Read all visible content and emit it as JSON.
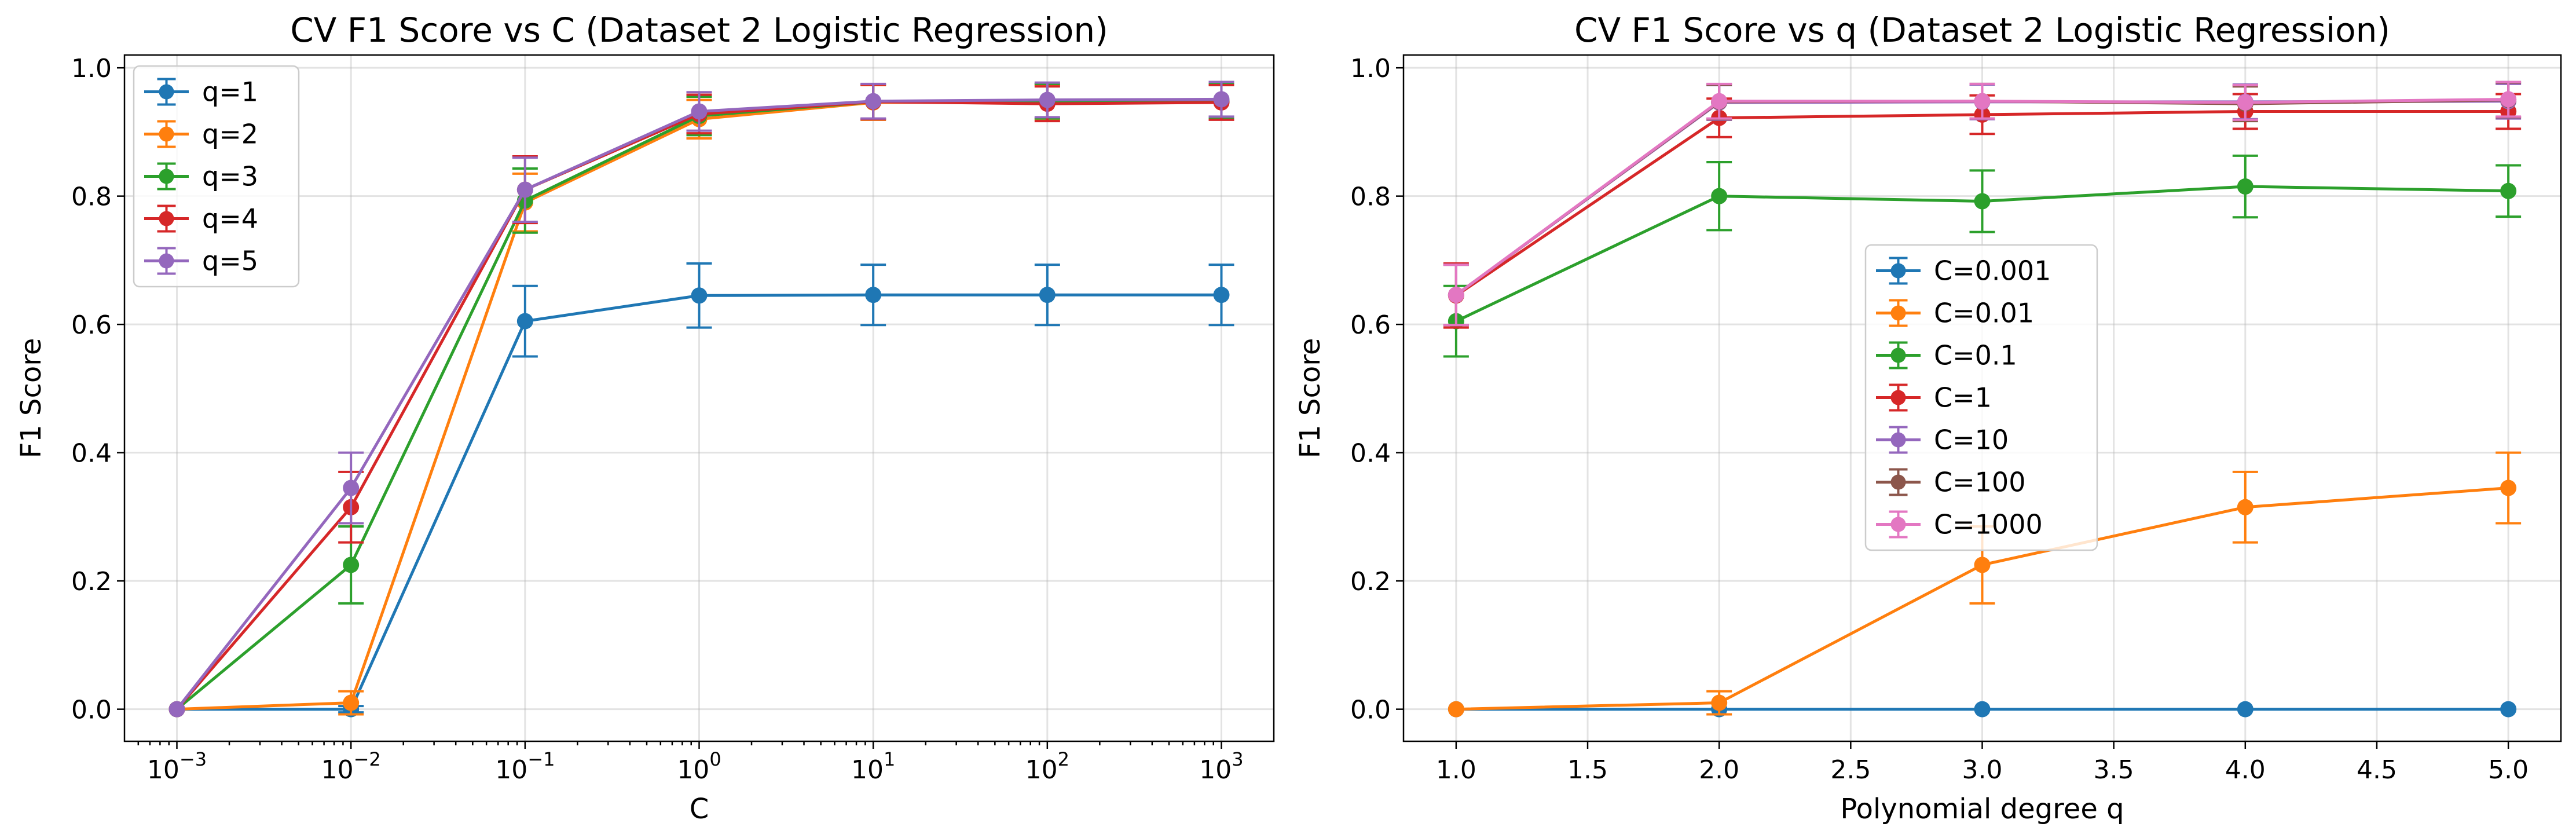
{
  "chart_data": [
    {
      "type": "line",
      "title": "CV F1 Score vs C (Dataset 2 Logistic Regression)",
      "xlabel": "C",
      "ylabel": "F1 Score",
      "xscale": "log",
      "x": [
        0.001,
        0.01,
        0.1,
        1,
        10,
        100,
        1000
      ],
      "xticks": [
        0.001,
        0.01,
        0.1,
        1,
        10,
        100,
        1000
      ],
      "xtick_labels": [
        {
          "base": "10",
          "exp": "−3"
        },
        {
          "base": "10",
          "exp": "−2"
        },
        {
          "base": "10",
          "exp": "−1"
        },
        {
          "base": "10",
          "exp": "0"
        },
        {
          "base": "10",
          "exp": "1"
        },
        {
          "base": "10",
          "exp": "2"
        },
        {
          "base": "10",
          "exp": "3"
        }
      ],
      "xlim": [
        0.0005,
        2000
      ],
      "ylim": [
        -0.05,
        1.02
      ],
      "yticks": [
        0.0,
        0.2,
        0.4,
        0.6,
        0.8,
        1.0
      ],
      "ytick_labels": [
        "0.0",
        "0.2",
        "0.4",
        "0.6",
        "0.8",
        "1.0"
      ],
      "grid": true,
      "legend_position": "upper-left",
      "series": [
        {
          "name": "q=1",
          "color": "#1f77b4",
          "values": [
            0.0,
            0.0,
            0.605,
            0.645,
            0.646,
            0.646,
            0.646
          ],
          "errors": [
            0.0,
            0.005,
            0.055,
            0.05,
            0.047,
            0.047,
            0.047
          ]
        },
        {
          "name": "q=2",
          "color": "#ff7f0e",
          "values": [
            0.0,
            0.01,
            0.79,
            0.92,
            0.946,
            0.947,
            0.948
          ],
          "errors": [
            0.0,
            0.018,
            0.045,
            0.03,
            0.027,
            0.027,
            0.027
          ]
        },
        {
          "name": "q=3",
          "color": "#2ca02c",
          "values": [
            0.0,
            0.225,
            0.793,
            0.925,
            0.947,
            0.948,
            0.948
          ],
          "errors": [
            0.0,
            0.06,
            0.05,
            0.03,
            0.027,
            0.027,
            0.027
          ]
        },
        {
          "name": "q=4",
          "color": "#d62728",
          "values": [
            0.0,
            0.315,
            0.81,
            0.928,
            0.947,
            0.944,
            0.946
          ],
          "errors": [
            0.0,
            0.055,
            0.052,
            0.03,
            0.027,
            0.027,
            0.027
          ]
        },
        {
          "name": "q=5",
          "color": "#9467bd",
          "values": [
            0.0,
            0.345,
            0.81,
            0.932,
            0.948,
            0.95,
            0.951
          ],
          "errors": [
            0.0,
            0.055,
            0.05,
            0.03,
            0.027,
            0.027,
            0.027
          ]
        }
      ]
    },
    {
      "type": "line",
      "title": "CV F1 Score vs q (Dataset 2 Logistic Regression)",
      "xlabel": "Polynomial degree q",
      "ylabel": "F1 Score",
      "xscale": "linear",
      "x": [
        1,
        2,
        3,
        4,
        5
      ],
      "xticks": [
        1.0,
        1.5,
        2.0,
        2.5,
        3.0,
        3.5,
        4.0,
        4.5,
        5.0
      ],
      "xtick_labels": [
        "1.0",
        "1.5",
        "2.0",
        "2.5",
        "3.0",
        "3.5",
        "4.0",
        "4.5",
        "5.0"
      ],
      "xlim": [
        0.8,
        5.2
      ],
      "ylim": [
        -0.05,
        1.02
      ],
      "yticks": [
        0.0,
        0.2,
        0.4,
        0.6,
        0.8,
        1.0
      ],
      "ytick_labels": [
        "0.0",
        "0.2",
        "0.4",
        "0.6",
        "0.8",
        "1.0"
      ],
      "grid": true,
      "legend_position": "center",
      "series": [
        {
          "name": "C=0.001",
          "color": "#1f77b4",
          "values": [
            0.0,
            0.0,
            0.0,
            0.0,
            0.0
          ],
          "errors": [
            0.0,
            0.0,
            0.0,
            0.0,
            0.0
          ]
        },
        {
          "name": "C=0.01",
          "color": "#ff7f0e",
          "values": [
            0.0,
            0.01,
            0.225,
            0.315,
            0.345
          ],
          "errors": [
            0.0,
            0.018,
            0.06,
            0.055,
            0.055
          ]
        },
        {
          "name": "C=0.1",
          "color": "#2ca02c",
          "values": [
            0.605,
            0.8,
            0.792,
            0.815,
            0.808
          ],
          "errors": [
            0.055,
            0.053,
            0.048,
            0.048,
            0.04
          ]
        },
        {
          "name": "C=1",
          "color": "#d62728",
          "values": [
            0.645,
            0.922,
            0.927,
            0.932,
            0.932
          ],
          "errors": [
            0.05,
            0.03,
            0.03,
            0.027,
            0.027
          ]
        },
        {
          "name": "C=10",
          "color": "#9467bd",
          "values": [
            0.646,
            0.946,
            0.947,
            0.947,
            0.948
          ],
          "errors": [
            0.047,
            0.027,
            0.027,
            0.027,
            0.027
          ]
        },
        {
          "name": "C=100",
          "color": "#8c564b",
          "values": [
            0.646,
            0.947,
            0.948,
            0.944,
            0.95
          ],
          "errors": [
            0.047,
            0.027,
            0.027,
            0.027,
            0.027
          ]
        },
        {
          "name": "C=1000",
          "color": "#e377c2",
          "values": [
            0.646,
            0.948,
            0.948,
            0.946,
            0.951
          ],
          "errors": [
            0.047,
            0.027,
            0.027,
            0.027,
            0.027
          ]
        }
      ]
    }
  ]
}
